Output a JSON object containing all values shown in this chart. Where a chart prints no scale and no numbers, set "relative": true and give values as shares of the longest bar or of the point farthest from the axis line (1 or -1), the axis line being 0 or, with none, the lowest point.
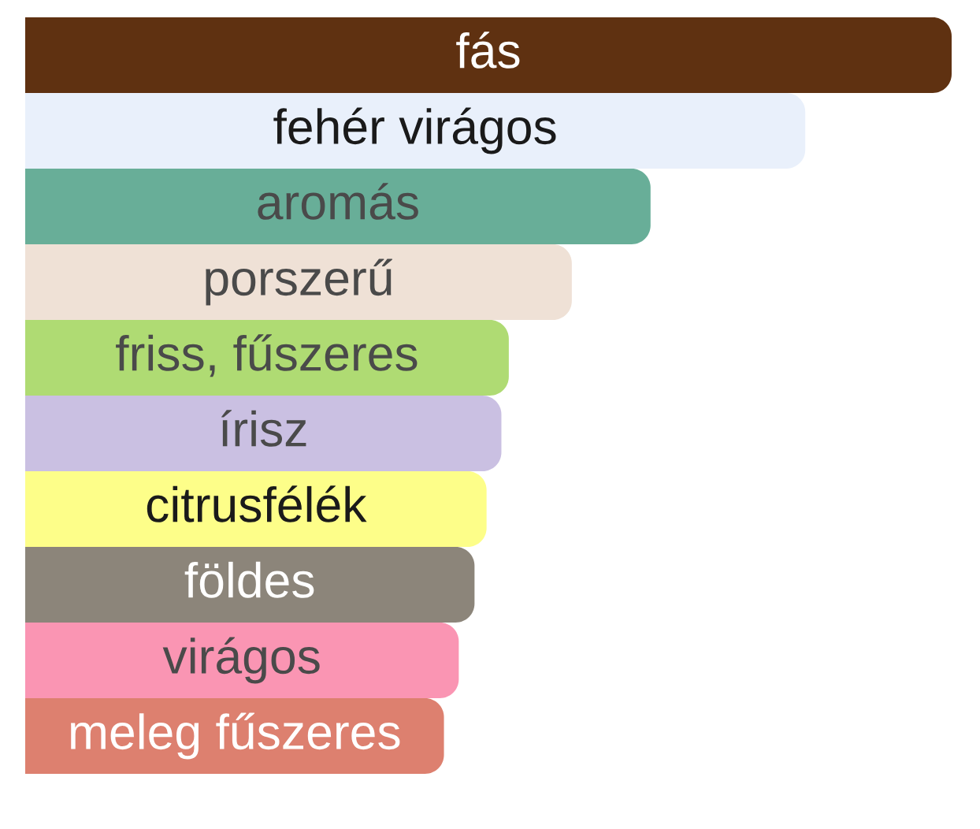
{
  "chart_data": {
    "type": "bar",
    "orientation": "horizontal",
    "relative": true,
    "tick_labels": false,
    "categories": [
      "fás",
      "fehér virágos",
      "aromás",
      "porszerű",
      "friss, fűszeres",
      "írisz",
      "citrusfélék",
      "földes",
      "virágos",
      "meleg fűszeres"
    ],
    "values": [
      1,
      0.842,
      0.675,
      0.59,
      0.522,
      0.514,
      0.498,
      0.485,
      0.468,
      0.452
    ],
    "colors": [
      "#5f3111",
      "#e9f0fb",
      "#68ae98",
      "#efe1d6",
      "#afdb73",
      "#cac0e2",
      "#fdfe89",
      "#8c857a",
      "#fa95b3",
      "#dd806f"
    ]
  }
}
